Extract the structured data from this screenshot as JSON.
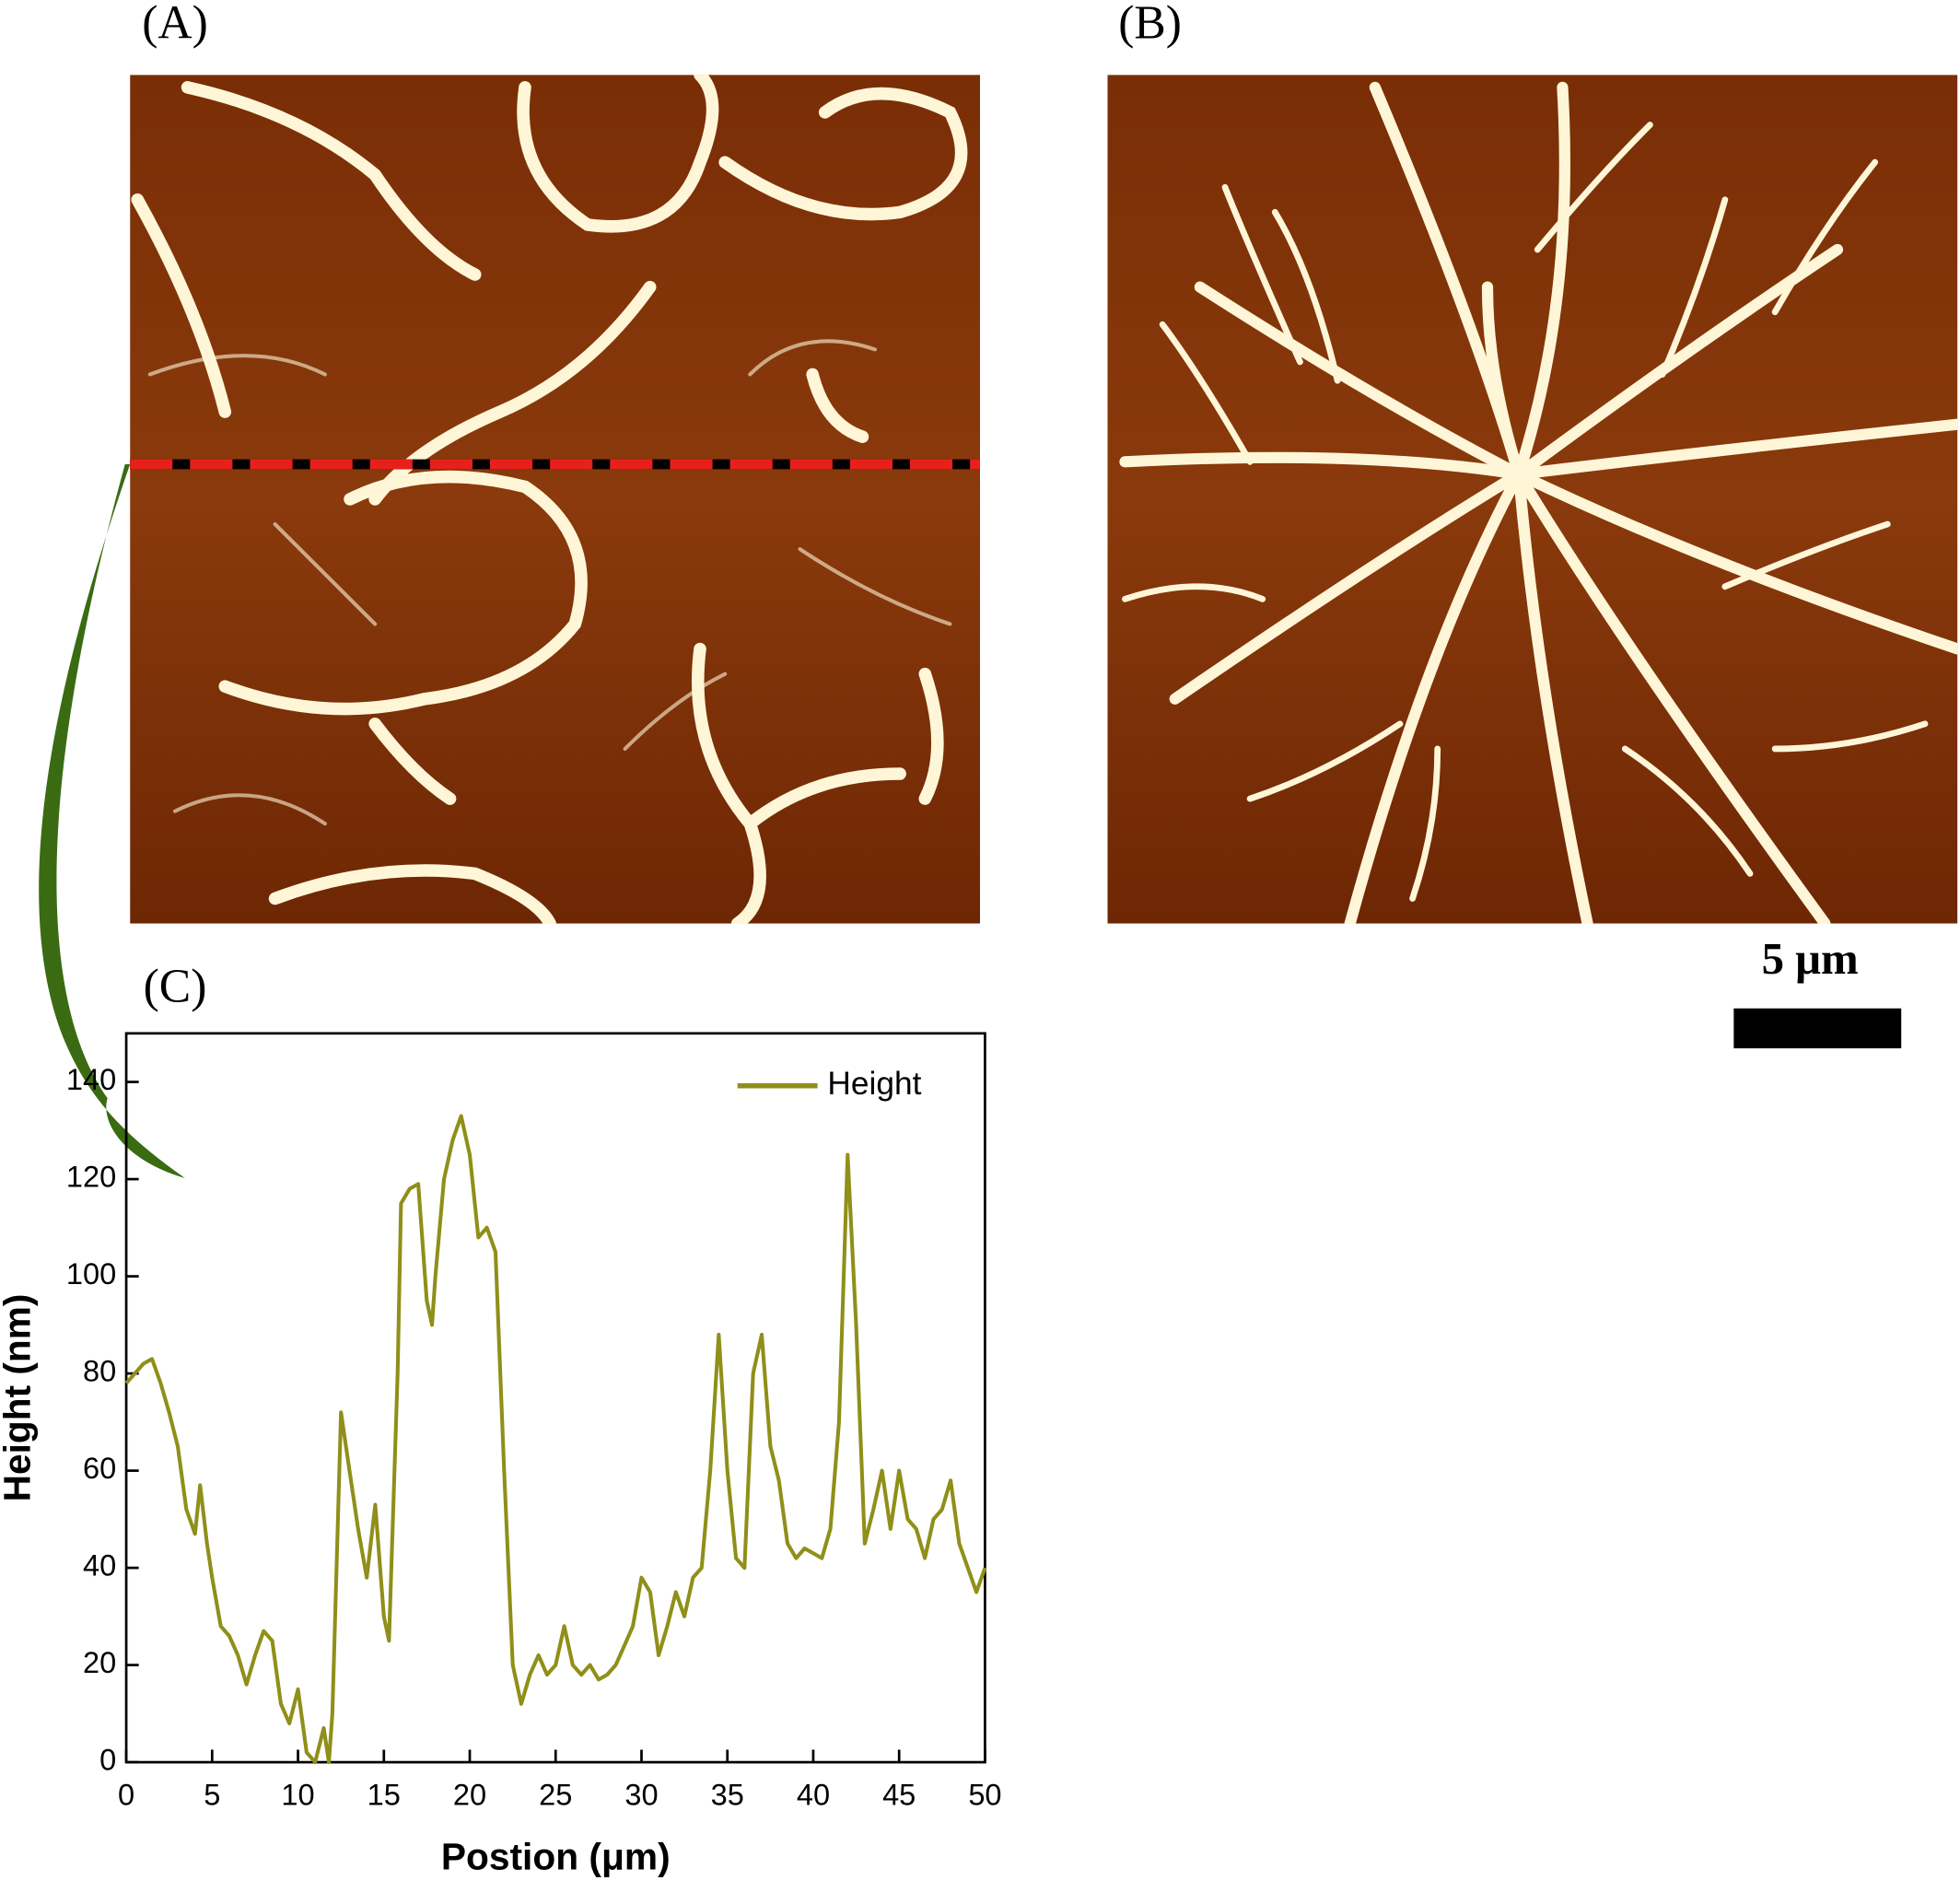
{
  "panel_labels": [
    "(A)",
    "(B)",
    "(C)"
  ],
  "scale_bar": "5 μm",
  "chart_data": {
    "type": "line",
    "xlabel": "Postion (μm)",
    "ylabel": "Height (nm)",
    "x": [
      0,
      0.5,
      1,
      1.5,
      2,
      2.5,
      3,
      3.5,
      4,
      4.3,
      4.7,
      5,
      5.5,
      6,
      6.5,
      7,
      7.5,
      8,
      8.5,
      9,
      9.5,
      10,
      10.5,
      11,
      11.5,
      11.8,
      12,
      12.5,
      13,
      13.5,
      14,
      14.5,
      15,
      15.3,
      15.8,
      16,
      16.5,
      17,
      17.5,
      17.8,
      18,
      18.5,
      19,
      19.5,
      20,
      20.5,
      21,
      21.5,
      22,
      22.5,
      23,
      23.5,
      24,
      24.5,
      25,
      25.5,
      26,
      26.5,
      27,
      27.5,
      28,
      28.5,
      29,
      29.5,
      30,
      30.5,
      31,
      31.5,
      32,
      32.5,
      33,
      33.5,
      34,
      34.5,
      35,
      35.5,
      36,
      36.5,
      37,
      37.5,
      38,
      38.5,
      39,
      39.5,
      40,
      40.5,
      41,
      41.5,
      42,
      42.5,
      43,
      43.5,
      44,
      44.5,
      45,
      45.5,
      46,
      46.5,
      47,
      47.5,
      48,
      48.5,
      49,
      49.5,
      50
    ],
    "series": [
      {
        "name": "Height",
        "color": "#8f8f1a",
        "values": [
          78,
          80,
          82,
          83,
          78,
          72,
          65,
          52,
          47,
          57,
          45,
          38,
          28,
          26,
          22,
          16,
          22,
          27,
          25,
          12,
          8,
          15,
          2,
          0,
          7,
          0,
          10,
          72,
          60,
          48,
          38,
          53,
          30,
          25,
          80,
          115,
          118,
          119,
          95,
          90,
          100,
          120,
          128,
          133,
          125,
          108,
          110,
          105,
          60,
          20,
          12,
          18,
          22,
          18,
          20,
          28,
          20,
          18,
          20,
          17,
          18,
          20,
          24,
          28,
          38,
          35,
          22,
          28,
          35,
          30,
          38,
          40,
          60,
          88,
          60,
          42,
          40,
          80,
          88,
          65,
          58,
          45,
          42,
          44,
          43,
          42,
          48,
          70,
          125,
          90,
          45,
          52,
          60,
          48,
          60,
          50,
          48,
          42,
          50,
          52,
          58,
          45,
          40,
          35,
          40
        ]
      }
    ],
    "xlim": [
      0,
      50
    ],
    "xticks": [
      0,
      5,
      10,
      15,
      20,
      25,
      30,
      35,
      40,
      45,
      50
    ],
    "ylim": [
      0,
      150
    ],
    "yticks": [
      0,
      20,
      40,
      60,
      80,
      100,
      120,
      140
    ],
    "legend": "upper right"
  }
}
